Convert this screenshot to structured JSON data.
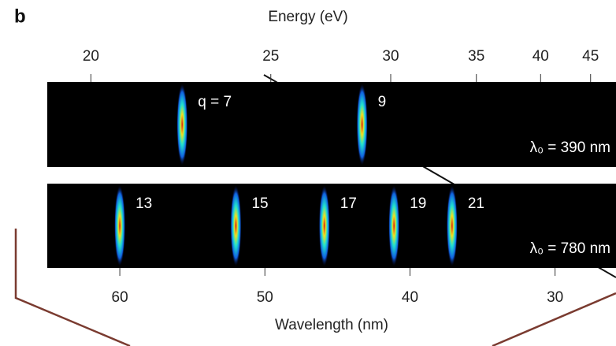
{
  "chart_data": {
    "type": "harmonic-spectrum",
    "panel_label": "b",
    "top_axis_label": "Energy (eV)",
    "top_ticks": [
      20,
      25,
      30,
      35,
      40,
      45
    ],
    "x_label": "Wavelength (nm)",
    "xlim": [
      65,
      25.8
    ],
    "xticks": [
      60,
      50,
      40,
      30
    ],
    "series": [
      {
        "name": "λ₀ = 390 nm",
        "labels": [
          "q = 7",
          "9"
        ],
        "values": [
          55.7,
          43.3
        ]
      },
      {
        "name": "λ₀ = 780 nm",
        "labels": [
          "13",
          "15",
          "17",
          "19",
          "21"
        ],
        "values": [
          60,
          52,
          45.9,
          41.1,
          37.1
        ]
      }
    ]
  }
}
